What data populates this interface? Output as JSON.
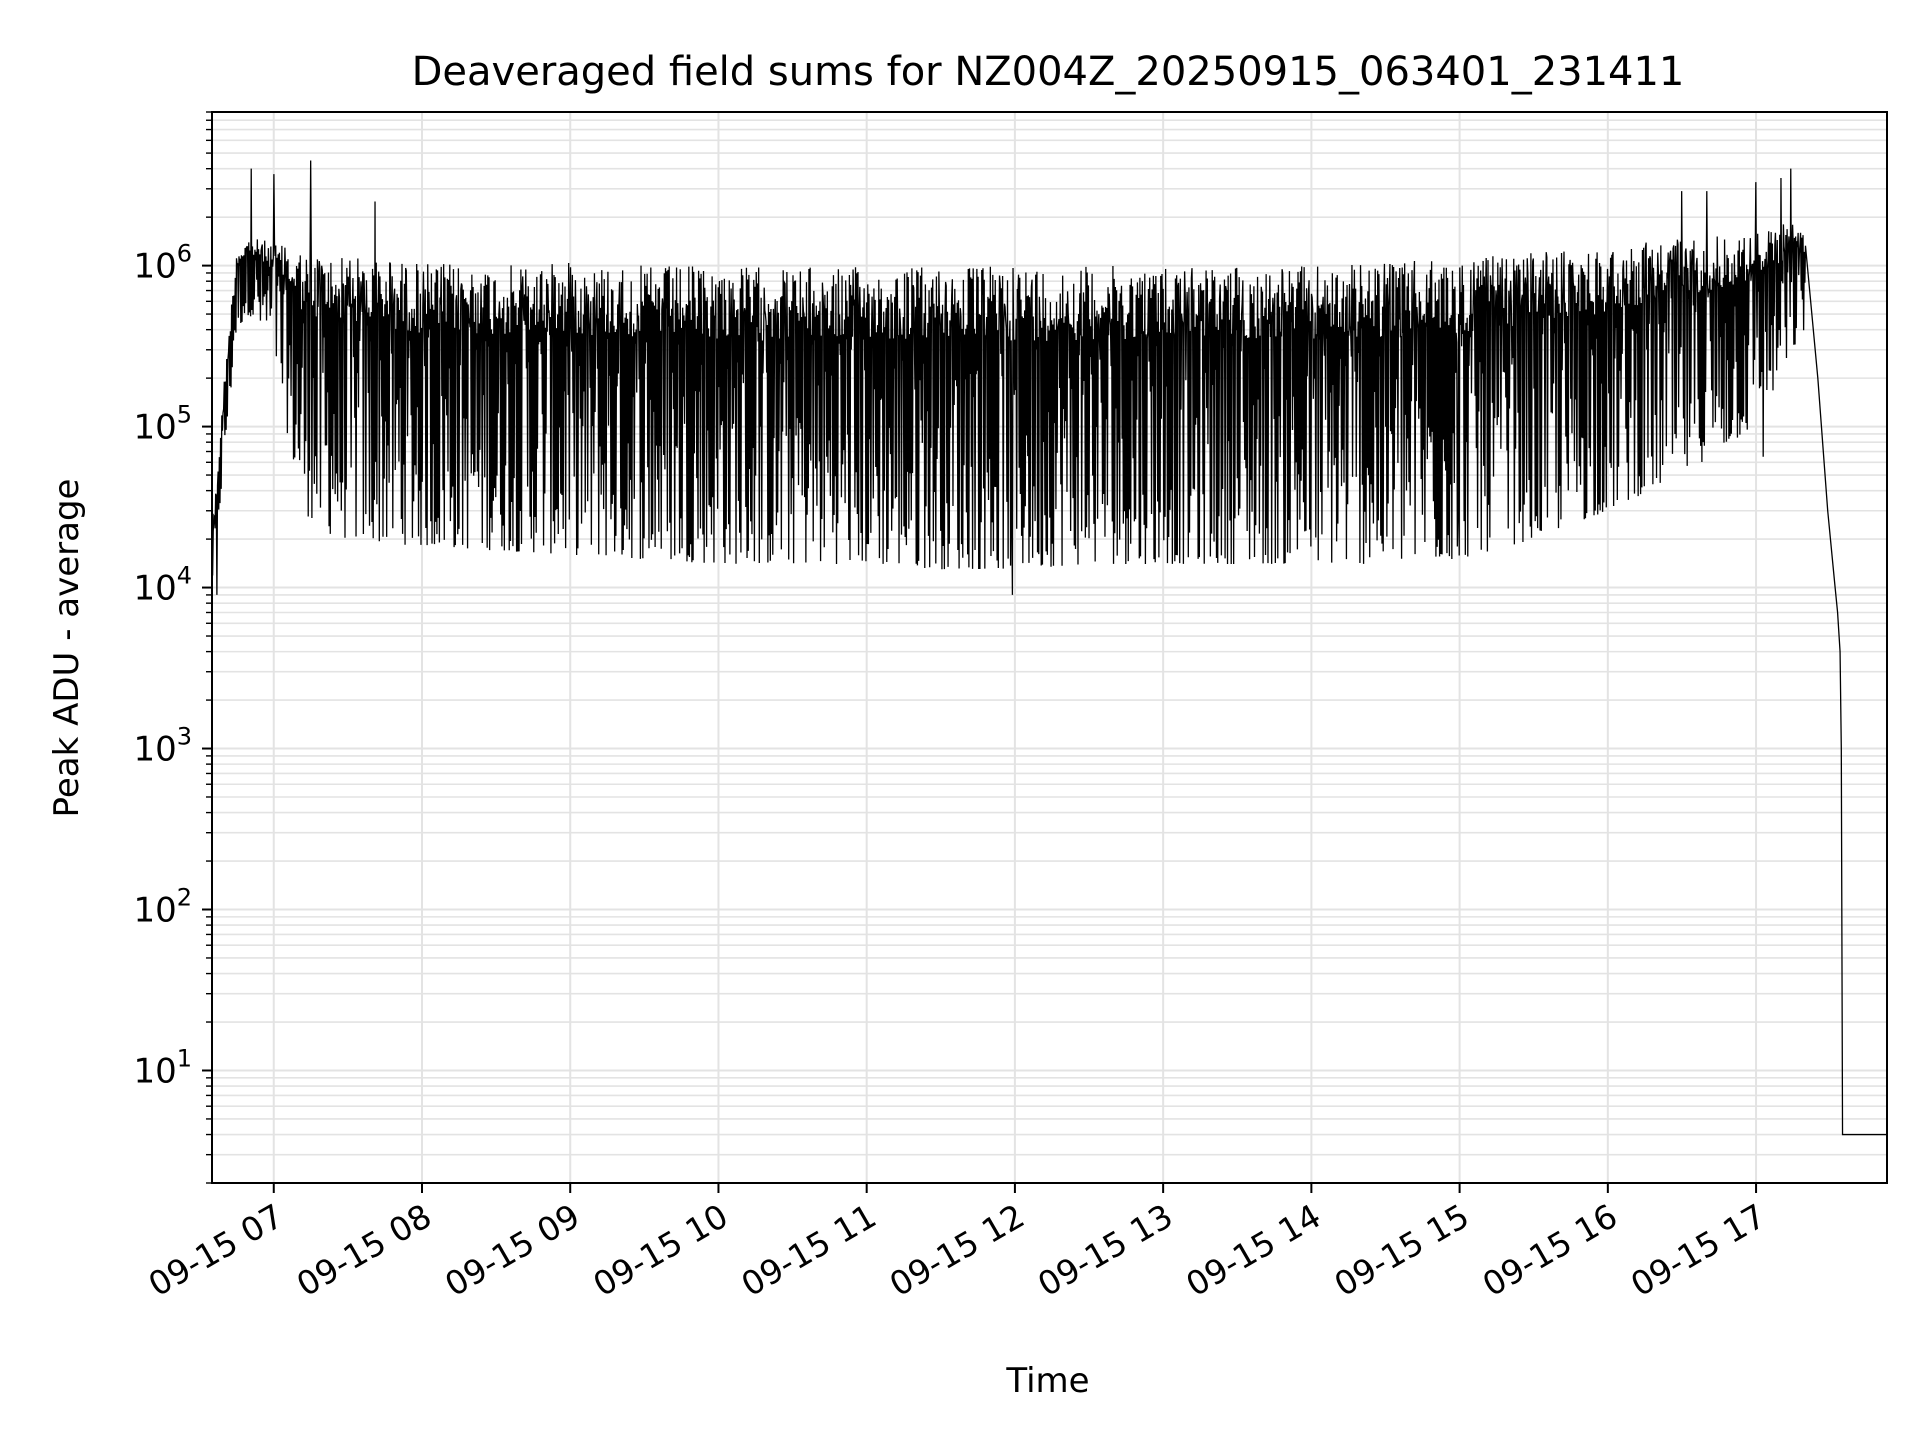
{
  "chart_data": {
    "type": "line",
    "title": "Deaveraged field sums for NZ004Z_20250915_063401_231411",
    "xlabel": "Time",
    "ylabel": "Peak ADU - average",
    "yscale": "log",
    "ylim": [
      2,
      9000000
    ],
    "xlim": [
      "2025-09-15 06:35:00",
      "2025-09-15 17:53:00"
    ],
    "grid": true,
    "colors": {
      "line": "#000000",
      "grid": "#e3e3e3",
      "axes": "#000000",
      "background": "#ffffff"
    },
    "x_ticks": [
      {
        "t": "2025-09-15 07:00",
        "label": "09-15 07"
      },
      {
        "t": "2025-09-15 08:00",
        "label": "09-15 08"
      },
      {
        "t": "2025-09-15 09:00",
        "label": "09-15 09"
      },
      {
        "t": "2025-09-15 10:00",
        "label": "09-15 10"
      },
      {
        "t": "2025-09-15 11:00",
        "label": "09-15 11"
      },
      {
        "t": "2025-09-15 12:00",
        "label": "09-15 12"
      },
      {
        "t": "2025-09-15 13:00",
        "label": "09-15 13"
      },
      {
        "t": "2025-09-15 14:00",
        "label": "09-15 14"
      },
      {
        "t": "2025-09-15 15:00",
        "label": "09-15 15"
      },
      {
        "t": "2025-09-15 16:00",
        "label": "09-15 16"
      },
      {
        "t": "2025-09-15 17:00",
        "label": "09-15 17"
      }
    ],
    "y_ticks": [
      {
        "value": 10,
        "base": "10",
        "exp": "1"
      },
      {
        "value": 100,
        "base": "10",
        "exp": "2"
      },
      {
        "value": 1000,
        "base": "10",
        "exp": "3"
      },
      {
        "value": 10000,
        "base": "10",
        "exp": "4"
      },
      {
        "value": 100000,
        "base": "10",
        "exp": "5"
      },
      {
        "value": 1000000,
        "base": "10",
        "exp": "6"
      }
    ],
    "envelope": {
      "time": [
        "2025-09-15 06:35",
        "2025-09-15 06:40",
        "2025-09-15 06:45",
        "2025-09-15 06:50",
        "2025-09-15 07:00",
        "2025-09-15 07:05",
        "2025-09-15 07:10",
        "2025-09-15 07:15",
        "2025-09-15 07:20",
        "2025-09-15 07:30",
        "2025-09-15 07:45",
        "2025-09-15 08:00",
        "2025-09-15 08:30",
        "2025-09-15 09:00",
        "2025-09-15 09:30",
        "2025-09-15 10:00",
        "2025-09-15 10:30",
        "2025-09-15 11:00",
        "2025-09-15 11:30",
        "2025-09-15 12:00",
        "2025-09-15 12:30",
        "2025-09-15 13:00",
        "2025-09-15 13:30",
        "2025-09-15 14:00",
        "2025-09-15 14:30",
        "2025-09-15 15:00",
        "2025-09-15 15:30",
        "2025-09-15 16:00",
        "2025-09-15 16:30",
        "2025-09-15 17:00",
        "2025-09-15 17:10",
        "2025-09-15 17:15",
        "2025-09-15 17:20"
      ],
      "upper": [
        20000,
        200000,
        1300000,
        1500000,
        1400000,
        1300000,
        1300000,
        1200000,
        1200000,
        1150000,
        1100000,
        1050000,
        1000000,
        1050000,
        1000000,
        1000000,
        980000,
        980000,
        1000000,
        1000000,
        1000000,
        1000000,
        1000000,
        1000000,
        1050000,
        1100000,
        1200000,
        1300000,
        1500000,
        1600000,
        1800000,
        2000000,
        1500000
      ],
      "lower": [
        10000,
        60000,
        400000,
        500000,
        300000,
        100000,
        40000,
        25000,
        22000,
        20000,
        19000,
        18000,
        17000,
        16000,
        15000,
        14000,
        14000,
        14000,
        13000,
        13000,
        14000,
        14000,
        14000,
        14000,
        14000,
        15000,
        20000,
        30000,
        50000,
        100000,
        200000,
        300000,
        400000
      ]
    },
    "tail": {
      "time": [
        "2025-09-15 17:20",
        "2025-09-15 17:25",
        "2025-09-15 17:29",
        "2025-09-15 17:32",
        "2025-09-15 17:33",
        "2025-09-15 17:34",
        "2025-09-15 17:34:30",
        "2025-09-15 17:35",
        "2025-09-15 17:38",
        "2025-09-15 17:53"
      ],
      "value": [
        1500000,
        200000,
        30000,
        10000,
        7000,
        4000,
        1000,
        4,
        4,
        4
      ]
    },
    "spikes": [
      {
        "t": "2025-09-15 06:51",
        "value": 4000000
      },
      {
        "t": "2025-09-15 07:00",
        "value": 3700000
      },
      {
        "t": "2025-09-15 07:15",
        "value": 4500000
      },
      {
        "t": "2025-09-15 07:41",
        "value": 2500000
      },
      {
        "t": "2025-09-15 16:30",
        "value": 2900000
      },
      {
        "t": "2025-09-15 16:40",
        "value": 2900000
      },
      {
        "t": "2025-09-15 17:00",
        "value": 3300000
      },
      {
        "t": "2025-09-15 17:10",
        "value": 3500000
      },
      {
        "t": "2025-09-15 17:14",
        "value": 4000000
      }
    ],
    "dips": [
      {
        "t": "2025-09-15 06:37",
        "value": 9000
      },
      {
        "t": "2025-09-15 11:59",
        "value": 9000
      },
      {
        "t": "2025-09-15 14:59",
        "value": 18000
      },
      {
        "t": "2025-09-15 17:03",
        "value": 65000
      }
    ]
  }
}
